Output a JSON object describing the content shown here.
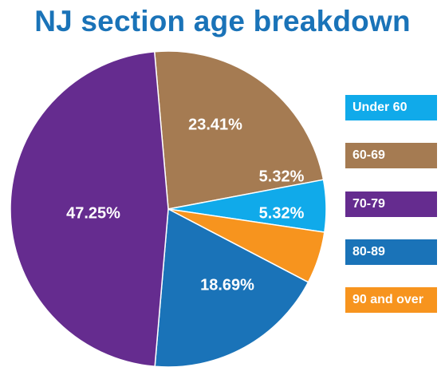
{
  "title": "NJ section age breakdown",
  "chart_data": {
    "type": "pie",
    "title": "NJ section age breakdown",
    "legend_position": "right",
    "categories": [
      "Under 60",
      "60-69",
      "70-79",
      "80-89",
      "90 and over"
    ],
    "slices": [
      {
        "category": "60-69",
        "value": 23.41,
        "label": "23.41%",
        "color": "#a57b52"
      },
      {
        "category": "Under 60",
        "value": 5.32,
        "label": "5.32%",
        "color": "#10aaea"
      },
      {
        "category": "90 and over",
        "value": 5.32,
        "label": "5.32%",
        "color": "#f7941e"
      },
      {
        "category": "80-89",
        "value": 18.69,
        "label": "18.69%",
        "color": "#1a73b8"
      },
      {
        "category": "70-79",
        "value": 47.25,
        "label": "47.25%",
        "color": "#652c8f"
      }
    ],
    "legend": [
      {
        "label": "Under 60",
        "color": "#10aaea"
      },
      {
        "label": "60-69",
        "color": "#a57b52"
      },
      {
        "label": "70-79",
        "color": "#652c8f"
      },
      {
        "label": "80-89",
        "color": "#1a73b8"
      },
      {
        "label": "90 and over",
        "color": "#f7941e"
      }
    ]
  }
}
